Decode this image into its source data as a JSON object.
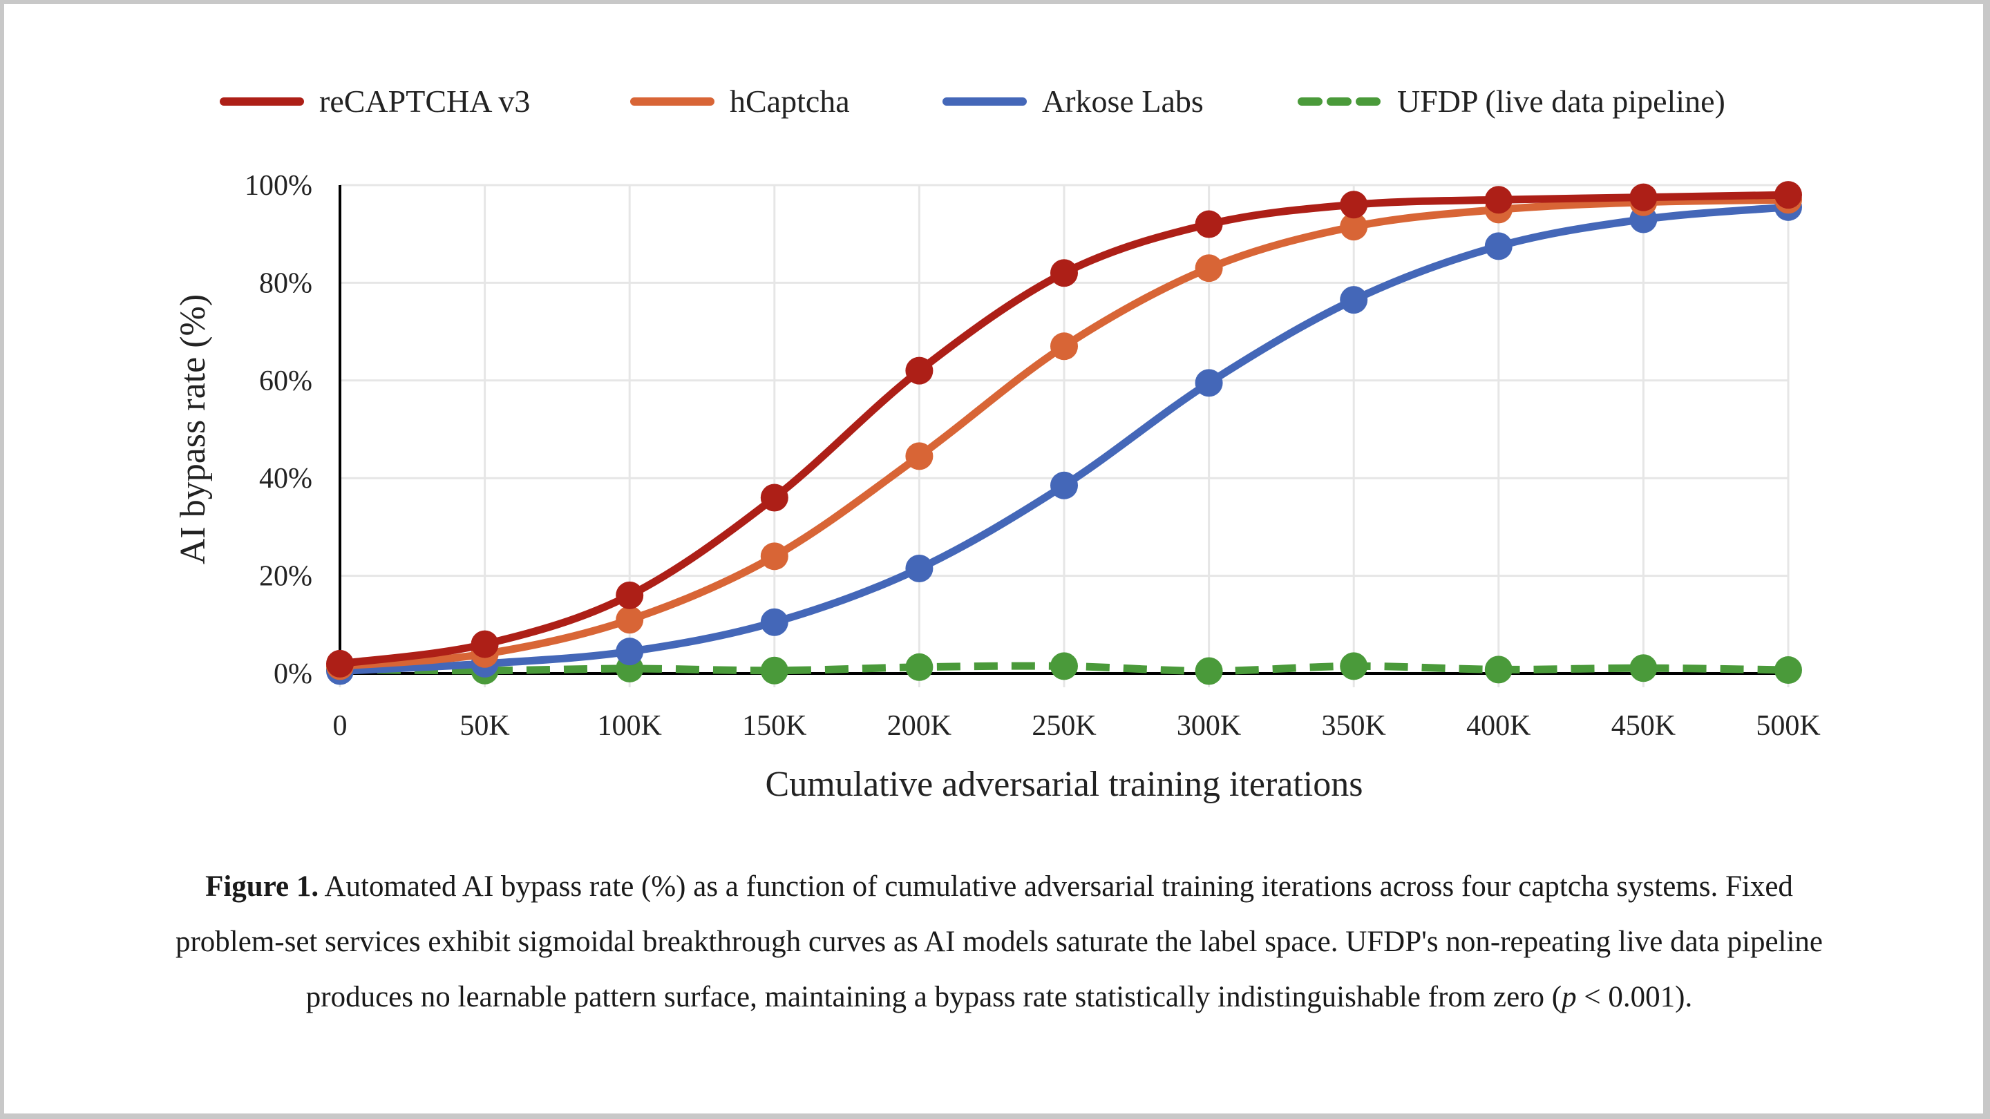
{
  "chart_data": {
    "type": "line",
    "title": "",
    "xlabel": "Cumulative adversarial training iterations",
    "ylabel": "AI bypass rate (%)",
    "x": [
      0,
      50000,
      100000,
      150000,
      200000,
      250000,
      300000,
      350000,
      400000,
      450000,
      500000
    ],
    "x_tick_labels": [
      "0",
      "50K",
      "100K",
      "150K",
      "200K",
      "250K",
      "300K",
      "350K",
      "400K",
      "450K",
      "500K"
    ],
    "y_ticks": [
      0,
      20,
      40,
      60,
      80,
      100
    ],
    "y_tick_labels": [
      "0%",
      "20%",
      "40%",
      "60%",
      "80%",
      "100%"
    ],
    "xlim": [
      0,
      500000
    ],
    "ylim": [
      0,
      100
    ],
    "grid": true,
    "legend_position": "top",
    "series": [
      {
        "name": "reCAPTCHA v3",
        "color": "#ad1f17",
        "style": "solid",
        "values": [
          2,
          6,
          16,
          36,
          62,
          82,
          92,
          96,
          97,
          97.5,
          98
        ]
      },
      {
        "name": "hCaptcha",
        "color": "#d86536",
        "style": "solid",
        "values": [
          1.5,
          4,
          11,
          24,
          44.5,
          67,
          83,
          91.5,
          95,
          96.5,
          97
        ]
      },
      {
        "name": "Arkose Labs",
        "color": "#4467b8",
        "style": "solid",
        "values": [
          0.5,
          2,
          4.5,
          10.5,
          21.5,
          38.5,
          59.5,
          76.5,
          87.5,
          93,
          95.5
        ]
      },
      {
        "name": "UFDP (live data pipeline)",
        "color": "#4a9a3a",
        "style": "dashed",
        "values": [
          0.8,
          0.6,
          1,
          0.6,
          1.3,
          1.5,
          0.5,
          1.5,
          0.8,
          1.1,
          0.7
        ]
      }
    ]
  },
  "caption": {
    "label": "Figure 1.",
    "text_1": " Automated AI bypass rate (%) as a function of cumulative adversarial training iterations across four captcha systems. Fixed problem-set services exhibit sigmoidal breakthrough curves as AI models saturate the label space. UFDP's non-repeating live data pipeline produces no learnable pattern surface, maintaining a bypass rate statistically indistinguishable from zero (",
    "p_symbol": "p",
    "text_2": " < 0.001)."
  }
}
